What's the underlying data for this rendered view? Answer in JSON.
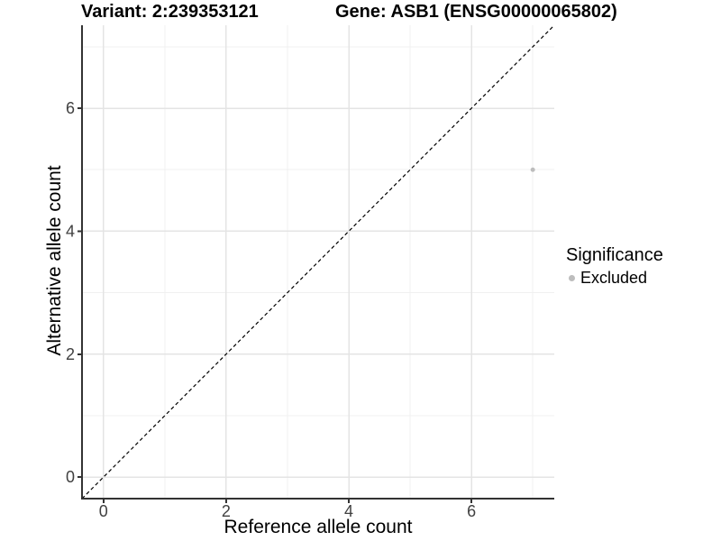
{
  "titles": {
    "variant": "Variant: 2:239353121",
    "gene": "Gene: ASB1 (ENSG00000065802)"
  },
  "chart_data": {
    "type": "scatter",
    "xlabel": "Reference allele count",
    "ylabel": "Alternative allele count",
    "xlim": [
      -0.35,
      7.35
    ],
    "ylim": [
      -0.35,
      7.35
    ],
    "xticks": [
      0,
      2,
      4,
      6
    ],
    "yticks": [
      0,
      2,
      4,
      6
    ],
    "xminor": [
      1,
      3,
      5,
      7
    ],
    "yminor": [
      1,
      3,
      5,
      7
    ],
    "grid": "on",
    "reference_line": {
      "type": "identity",
      "slope": 1,
      "intercept": 0,
      "style": "dashed",
      "color": "#000000"
    },
    "series": [
      {
        "name": "Excluded",
        "color": "#bdbdbd",
        "points": [
          {
            "x": 7,
            "y": 5
          }
        ]
      }
    ],
    "legend": {
      "title": "Significance",
      "position": "right",
      "items": [
        {
          "label": "Excluded",
          "color": "#bdbdbd"
        }
      ]
    }
  },
  "colors": {
    "background": "#ffffff",
    "grid_major": "#e4e4e4",
    "grid_minor": "#f0f0f0",
    "axis_line": "#333333",
    "tick_label": "#404040",
    "point": "#bdbdbd"
  }
}
